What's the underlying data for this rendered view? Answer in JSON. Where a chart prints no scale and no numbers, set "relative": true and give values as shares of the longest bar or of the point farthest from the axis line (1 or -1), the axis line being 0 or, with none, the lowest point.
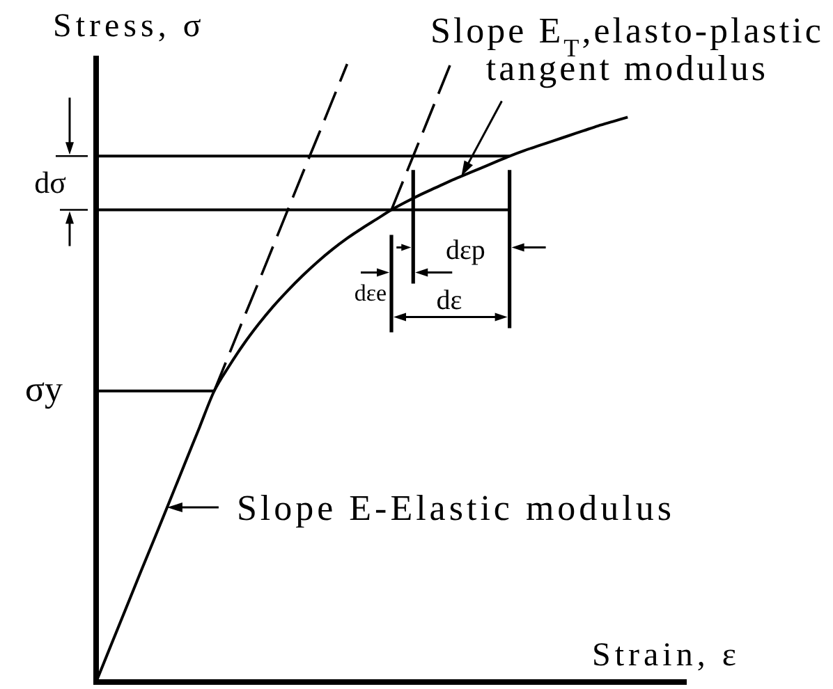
{
  "chart_data": {
    "type": "line",
    "relative": true,
    "xlabel": "Strain, ε",
    "ylabel": "Stress, σ",
    "categories": [
      null,
      null,
      null,
      null,
      null,
      null,
      null,
      null,
      null,
      null,
      null,
      null,
      null,
      null,
      null,
      null,
      null,
      null,
      null,
      null,
      null,
      null,
      null,
      null,
      null,
      null,
      null,
      null,
      null,
      null,
      null,
      null,
      null,
      null,
      null,
      null,
      null,
      null,
      null,
      null,
      null
    ],
    "annotations": [
      "Slope E$_{T}$,elasto-plastic\ntangent modulus",
      "Slope E-Elastic modulus",
      "dσ",
      "dεe",
      "dεp",
      "dε"
    ],
    "series": [
      {
        "color": "#000000",
        "values": [
          0,
          0.059,
          0.118,
          0.177,
          0.235,
          0.294,
          0.353,
          0.412,
          0.471,
          0.511,
          0.547,
          0.579,
          0.608,
          0.634,
          0.658,
          0.68,
          0.7,
          0.718,
          0.734,
          0.749,
          0.764,
          0.777,
          0.789,
          0.8,
          0.811,
          0.821,
          0.831,
          0.841,
          0.851,
          0.86,
          0.868,
          0.876,
          0.884,
          0.892,
          0.9,
          0.907,
          0.914,
          null,
          null,
          null,
          null
        ]
      },
      {
        "color": "#000000",
        "line_style": "dashed",
        "values": [
          null,
          null,
          null,
          null,
          null,
          null,
          null,
          null,
          0.471,
          0.53,
          0.589,
          0.647,
          0.706,
          0.765,
          0.824,
          0.882,
          0.941,
          1.0,
          null,
          null,
          null,
          null,
          null,
          null,
          null,
          null,
          null,
          null,
          null,
          null,
          null,
          null,
          null,
          null,
          null,
          null,
          null,
          null,
          null,
          null,
          null
        ]
      },
      {
        "color": "#000000",
        "line_style": "dashed",
        "values": [
          null,
          null,
          null,
          null,
          null,
          null,
          null,
          null,
          null,
          null,
          null,
          null,
          null,
          null,
          null,
          null,
          null,
          null,
          null,
          null,
          0.764,
          0.823,
          0.882,
          0.941,
          1.0,
          null,
          null,
          null,
          null,
          null,
          null,
          null,
          null,
          null,
          null,
          null,
          null,
          null,
          null,
          null,
          null
        ]
      },
      {
        "name": "σy",
        "color": "#000000",
        "values": [
          0.471,
          0.471,
          0.471,
          0.471,
          0.471,
          0.471,
          0.471,
          0.471,
          0.471,
          null,
          null,
          null,
          null,
          null,
          null,
          null,
          null,
          null,
          null,
          null,
          null,
          null,
          null,
          null,
          null,
          null,
          null,
          null,
          null,
          null,
          null,
          null,
          null,
          null,
          null,
          null,
          null,
          null,
          null,
          null,
          null
        ]
      },
      {
        "color": "#000000",
        "values": [
          0.851,
          0.851,
          0.851,
          0.851,
          0.851,
          0.851,
          0.851,
          0.851,
          0.851,
          0.851,
          0.851,
          0.851,
          0.851,
          0.851,
          0.851,
          0.851,
          0.851,
          0.851,
          0.851,
          0.851,
          0.851,
          0.851,
          0.851,
          0.851,
          0.851,
          0.851,
          0.851,
          0.851,
          0.851,
          null,
          null,
          null,
          null,
          null,
          null,
          null,
          null,
          null,
          null,
          null,
          null
        ]
      },
      {
        "color": "#000000",
        "values": [
          0.764,
          0.764,
          0.764,
          0.764,
          0.764,
          0.764,
          0.764,
          0.764,
          0.764,
          0.764,
          0.764,
          0.764,
          0.764,
          0.764,
          0.764,
          0.764,
          0.764,
          0.764,
          0.764,
          0.764,
          0.764,
          0.764,
          0.764,
          0.764,
          0.764,
          0.764,
          0.764,
          0.764,
          0.764,
          null,
          null,
          null,
          null,
          null,
          null,
          null,
          null,
          null,
          null,
          null,
          null
        ]
      }
    ]
  }
}
